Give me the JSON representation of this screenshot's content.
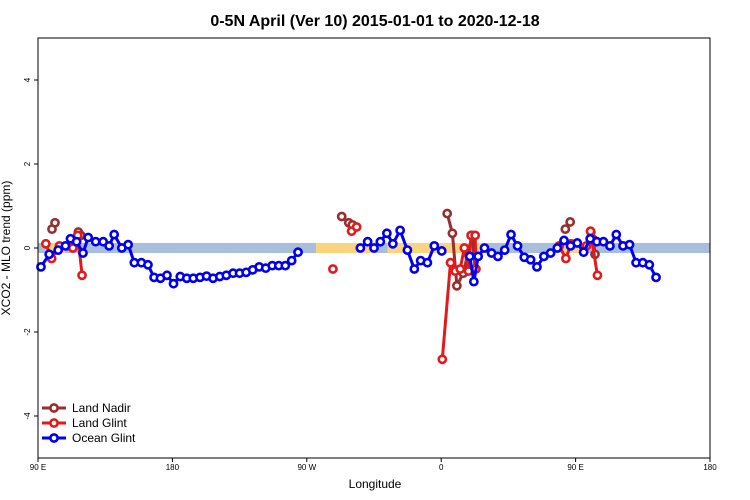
{
  "chart_data": {
    "type": "line",
    "title": "0-5N April (Ver 10)   2015-01-01 to 2020-12-18",
    "xlabel": "Longitude",
    "ylabel": "XCO2 - MLO trend (ppm)",
    "xlim": [
      90,
      450
    ],
    "ylim": [
      -5,
      5
    ],
    "x_ticks": [
      {
        "value": 90,
        "label": "90 E"
      },
      {
        "value": 162,
        "label": "180"
      },
      {
        "value": 234,
        "label": "90 W"
      },
      {
        "value": 306,
        "label": "0"
      },
      {
        "value": 378,
        "label": "90 E"
      },
      {
        "value": 450,
        "label": "180"
      }
    ],
    "y_ticks": [
      {
        "value": -4,
        "label": "-4"
      },
      {
        "value": -2,
        "label": "-2"
      },
      {
        "value": 0,
        "label": "0"
      },
      {
        "value": 2,
        "label": "2"
      },
      {
        "value": 4,
        "label": "4"
      }
    ],
    "bands": [
      {
        "x0": 90,
        "x1": 450,
        "color": "#a9bedb"
      },
      {
        "x0": 93.8,
        "x1": 104.6,
        "color": "#fbd480"
      },
      {
        "x0": 238.9,
        "x1": 270.2,
        "color": "#fbd480"
      },
      {
        "x0": 277.2,
        "x1": 327.9,
        "color": "#fbd480"
      },
      {
        "x0": 369.5,
        "x1": 380.3,
        "color": "#fbd480"
      }
    ],
    "legend_position": "bottom-left",
    "series": [
      {
        "name": "Land Nadir",
        "color": "#9a2e2e",
        "segments": [
          [
            [
              97.5,
              0.45
            ],
            [
              99.1,
              0.6
            ]
          ],
          [
            [
              111.6,
              0.38
            ],
            [
              112.9,
              0.3
            ]
          ],
          [
            [
              252.7,
              0.75
            ],
            [
              256.5,
              0.6
            ],
            [
              258.4,
              0.55
            ]
          ],
          [
            [
              309.2,
              0.82
            ],
            [
              312.0,
              0.35
            ],
            [
              314.4,
              -0.9
            ],
            [
              317.8,
              -0.6
            ],
            [
              322.6,
              0.3
            ],
            [
              324.2,
              -0.5
            ]
          ],
          [
            [
              372.5,
              0.45
            ],
            [
              375.1,
              0.62
            ]
          ],
          [
            [
              386.2,
              0.38
            ],
            [
              387.6,
              0.2
            ],
            [
              388.4,
              -0.15
            ]
          ]
        ]
      },
      {
        "name": "Land Glint",
        "color": "#e31a1c",
        "segments": [
          [
            [
              94.2,
              0.1
            ],
            [
              97.3,
              -0.25
            ],
            [
              101.5,
              0.05
            ]
          ],
          [
            [
              106.1,
              0.05
            ],
            [
              108.7,
              0.0
            ],
            [
              111.3,
              0.3
            ],
            [
              113.6,
              -0.65
            ]
          ],
          [
            [
              248.0,
              -0.5
            ]
          ],
          [
            [
              258.0,
              0.4
            ],
            [
              260.7,
              0.5
            ]
          ],
          [
            [
              306.6,
              -2.65
            ],
            [
              311.0,
              -0.35
            ],
            [
              313.5,
              -0.55
            ],
            [
              316.2,
              -0.5
            ],
            [
              318.4,
              0.0
            ],
            [
              320.6,
              -0.55
            ],
            [
              322.0,
              0.3
            ],
            [
              324.2,
              0.3
            ],
            [
              324.6,
              -0.5
            ]
          ],
          [
            [
              369.2,
              0.05
            ],
            [
              372.8,
              -0.25
            ],
            [
              375.6,
              0.1
            ]
          ],
          [
            [
              383.8,
              0.05
            ],
            [
              386.0,
              0.4
            ],
            [
              389.7,
              -0.65
            ]
          ]
        ]
      },
      {
        "name": "Ocean Glint",
        "color": "#0000ee",
        "segments": [
          [
            [
              91.6,
              -0.45
            ],
            [
              96.0,
              -0.15
            ],
            [
              100.8,
              -0.05
            ],
            [
              104.7,
              0.05
            ],
            [
              107.4,
              0.22
            ],
            [
              110.7,
              0.15
            ],
            [
              114.1,
              -0.12
            ],
            [
              116.9,
              0.25
            ],
            [
              120.9,
              0.15
            ],
            [
              124.9,
              0.15
            ],
            [
              128.1,
              0.05
            ],
            [
              130.8,
              0.32
            ],
            [
              134.9,
              0.0
            ],
            [
              138.3,
              0.08
            ],
            [
              141.6,
              -0.35
            ],
            [
              145.4,
              -0.35
            ],
            [
              148.9,
              -0.4
            ],
            [
              152.2,
              -0.7
            ],
            [
              155.6,
              -0.72
            ],
            [
              159.1,
              -0.65
            ],
            [
              162.6,
              -0.85
            ],
            [
              166.2,
              -0.68
            ],
            [
              169.7,
              -0.72
            ],
            [
              173.2,
              -0.72
            ],
            [
              176.8,
              -0.7
            ],
            [
              180.3,
              -0.67
            ],
            [
              183.8,
              -0.72
            ],
            [
              187.4,
              -0.68
            ],
            [
              190.9,
              -0.65
            ],
            [
              194.5,
              -0.6
            ],
            [
              198.0,
              -0.6
            ],
            [
              201.5,
              -0.58
            ],
            [
              205.0,
              -0.52
            ],
            [
              208.5,
              -0.45
            ],
            [
              212.0,
              -0.48
            ],
            [
              215.5,
              -0.42
            ],
            [
              219.0,
              -0.42
            ],
            [
              222.5,
              -0.42
            ],
            [
              225.9,
              -0.3
            ],
            [
              229.3,
              -0.1
            ]
          ],
          [
            [
              262.7,
              0.0
            ],
            [
              266.6,
              0.15
            ],
            [
              270.0,
              0.0
            ],
            [
              273.4,
              0.15
            ],
            [
              276.9,
              0.35
            ],
            [
              280.1,
              0.1
            ],
            [
              284.0,
              0.42
            ],
            [
              287.9,
              -0.05
            ],
            [
              291.6,
              -0.5
            ],
            [
              295.0,
              -0.3
            ],
            [
              298.6,
              -0.35
            ],
            [
              302.3,
              0.05
            ],
            [
              306.3,
              -0.07
            ]
          ],
          [
            [
              321.3,
              -0.2
            ],
            [
              323.5,
              -0.8
            ],
            [
              325.8,
              -0.2
            ],
            [
              329.2,
              0.0
            ],
            [
              333.0,
              -0.12
            ],
            [
              336.4,
              -0.2
            ],
            [
              340.0,
              -0.05
            ],
            [
              343.4,
              0.32
            ],
            [
              346.9,
              0.05
            ],
            [
              350.5,
              -0.22
            ],
            [
              353.9,
              -0.28
            ],
            [
              357.3,
              -0.45
            ],
            [
              361.0,
              -0.2
            ],
            [
              364.6,
              -0.12
            ],
            [
              368.2,
              0.0
            ],
            [
              371.8,
              0.18
            ],
            [
              375.3,
              0.05
            ],
            [
              378.9,
              0.12
            ],
            [
              382.3,
              -0.1
            ],
            [
              385.8,
              0.22
            ],
            [
              389.4,
              0.15
            ],
            [
              392.9,
              0.15
            ],
            [
              396.4,
              0.05
            ],
            [
              399.8,
              0.32
            ],
            [
              403.4,
              0.05
            ],
            [
              406.9,
              0.08
            ],
            [
              410.4,
              -0.35
            ],
            [
              414.0,
              -0.35
            ],
            [
              417.5,
              -0.4
            ],
            [
              421.1,
              -0.7
            ]
          ]
        ]
      }
    ]
  }
}
